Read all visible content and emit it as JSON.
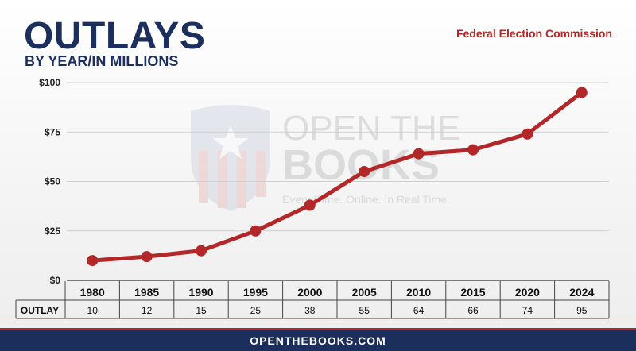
{
  "header": {
    "title": "OUTLAYS",
    "subtitle": "BY YEAR/IN MILLIONS",
    "source": "Federal Election Commission"
  },
  "watermark": {
    "line1": "OPEN THE",
    "line2": "BOOKS",
    "tagline": "Every Dime. Online. In Real Time."
  },
  "colors": {
    "line": "#b32728",
    "navy": "#1c2f5c"
  },
  "chart_data": {
    "type": "line",
    "title": "OUTLAYS",
    "subtitle": "BY YEAR/IN MILLIONS",
    "categories": [
      "1980",
      "1985",
      "1990",
      "1995",
      "2000",
      "2005",
      "2010",
      "2015",
      "2020",
      "2024"
    ],
    "series": [
      {
        "name": "OUTLAY",
        "values": [
          10,
          12,
          15,
          25,
          38,
          55,
          64,
          66,
          74,
          95
        ]
      }
    ],
    "ylim": [
      0,
      100
    ],
    "yticks": [
      0,
      25,
      50,
      75,
      100
    ],
    "ytick_labels": [
      "$0",
      "$25",
      "$50",
      "$75",
      "$100"
    ],
    "grid": true,
    "table_row_label": "OUTLAY",
    "table_values": [
      "10",
      "12",
      "15",
      "25",
      "38",
      "55",
      "64",
      "66",
      "74",
      "95"
    ]
  },
  "footer": {
    "text": "OPENTHEBOOKS.COM"
  }
}
